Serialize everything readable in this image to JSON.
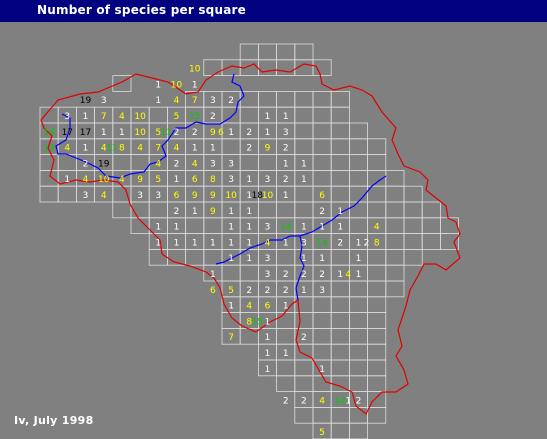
{
  "title": "Number of species per square",
  "footer": "Iv, July 1998",
  "colors": {
    "background": "#808080",
    "title_bar": "#000080",
    "grid": "#dcdcdc",
    "border": "#e00000",
    "river": "#0000ff",
    "count_1_3": "#ffffff",
    "count_4_10": "#ffff00",
    "count_11_16": "#00cc00",
    "count_17_plus": "#000000"
  },
  "cells": [
    [
      "10",
      8,
      1
    ],
    [
      "1",
      6,
      2
    ],
    [
      "10",
      7,
      2
    ],
    [
      "1",
      8,
      2
    ],
    [
      "19",
      2,
      3
    ],
    [
      "3",
      3,
      3
    ],
    [
      "1",
      6,
      3
    ],
    [
      "4",
      7,
      3
    ],
    [
      "7",
      8,
      3
    ],
    [
      "3",
      9,
      3
    ],
    [
      "2",
      10,
      3
    ],
    [
      "3",
      1,
      4
    ],
    [
      "1",
      2,
      4
    ],
    [
      "7",
      3,
      4
    ],
    [
      "4",
      4,
      4
    ],
    [
      "10",
      5,
      4
    ],
    [
      "5",
      7,
      4
    ],
    [
      "15",
      8,
      4
    ],
    [
      "2",
      9,
      4
    ],
    [
      "1",
      12,
      4
    ],
    [
      "1",
      13,
      4
    ],
    [
      "14",
      0,
      5
    ],
    [
      "17",
      1,
      5
    ],
    [
      "17",
      2,
      5
    ],
    [
      "1",
      3,
      5
    ],
    [
      "1",
      4,
      5
    ],
    [
      "10",
      5,
      5
    ],
    [
      "5",
      6,
      5
    ],
    [
      "11",
      6,
      5
    ],
    [
      "2",
      7,
      5
    ],
    [
      "2",
      8,
      5
    ],
    [
      "9",
      9,
      5
    ],
    [
      "6",
      9,
      5
    ],
    [
      "1",
      10,
      5
    ],
    [
      "2",
      11,
      5
    ],
    [
      "1",
      12,
      5
    ],
    [
      "3",
      13,
      5
    ],
    [
      "13",
      0,
      6
    ],
    [
      "4",
      1,
      6
    ],
    [
      "1",
      2,
      6
    ],
    [
      "4",
      3,
      6
    ],
    [
      "11",
      3,
      6
    ],
    [
      "8",
      4,
      6
    ],
    [
      "4",
      5,
      6
    ],
    [
      "7",
      6,
      6
    ],
    [
      "4",
      7,
      6
    ],
    [
      "1",
      8,
      6
    ],
    [
      "1",
      9,
      6
    ],
    [
      "2",
      11,
      6
    ],
    [
      "9",
      12,
      6
    ],
    [
      "2",
      13,
      6
    ],
    [
      "2",
      2,
      7
    ],
    [
      "19",
      3,
      7
    ],
    [
      "4",
      6,
      7
    ],
    [
      "2",
      7,
      7
    ],
    [
      "4",
      8,
      7
    ],
    [
      "3",
      9,
      7
    ],
    [
      "3",
      10,
      7
    ],
    [
      "1",
      13,
      7
    ],
    [
      "1",
      14,
      7
    ],
    [
      "1",
      1,
      8
    ],
    [
      "4",
      2,
      8
    ],
    [
      "10",
      3,
      8
    ],
    [
      "4",
      4,
      8
    ],
    [
      "9",
      5,
      8
    ],
    [
      "5",
      6,
      8
    ],
    [
      "1",
      7,
      8
    ],
    [
      "6",
      8,
      8
    ],
    [
      "8",
      9,
      8
    ],
    [
      "3",
      10,
      8
    ],
    [
      "1",
      11,
      8
    ],
    [
      "3",
      12,
      8
    ],
    [
      "2",
      13,
      8
    ],
    [
      "1",
      14,
      8
    ],
    [
      "3",
      2,
      9
    ],
    [
      "4",
      3,
      9
    ],
    [
      "3",
      5,
      9
    ],
    [
      "3",
      6,
      9
    ],
    [
      "6",
      7,
      9
    ],
    [
      "9",
      8,
      9
    ],
    [
      "9",
      9,
      9
    ],
    [
      "10",
      10,
      9
    ],
    [
      "1",
      11,
      9
    ],
    [
      "18",
      11,
      9
    ],
    [
      "10",
      12,
      9
    ],
    [
      "1",
      13,
      9
    ],
    [
      "6",
      15,
      9
    ],
    [
      "2",
      7,
      10
    ],
    [
      "1",
      8,
      10
    ],
    [
      "9",
      9,
      10
    ],
    [
      "1",
      10,
      10
    ],
    [
      "1",
      11,
      10
    ],
    [
      "2",
      15,
      10
    ],
    [
      "1",
      16,
      10
    ],
    [
      "1",
      6,
      11
    ],
    [
      "1",
      7,
      11
    ],
    [
      "1",
      10,
      11
    ],
    [
      "1",
      11,
      11
    ],
    [
      "3",
      12,
      11
    ],
    [
      "14",
      13,
      11
    ],
    [
      "1",
      14,
      11
    ],
    [
      "1",
      15,
      11
    ],
    [
      "1",
      16,
      11
    ],
    [
      "4",
      18,
      11
    ],
    [
      "1",
      6,
      12
    ],
    [
      "1",
      7,
      12
    ],
    [
      "1",
      8,
      12
    ],
    [
      "1",
      9,
      12
    ],
    [
      "1",
      10,
      12
    ],
    [
      "1",
      11,
      12
    ],
    [
      "4",
      12,
      12
    ],
    [
      "1",
      13,
      12
    ],
    [
      "3",
      14,
      12
    ],
    [
      "14",
      15,
      12
    ],
    [
      "2",
      16,
      12
    ],
    [
      "1",
      17,
      12
    ],
    [
      "2",
      17,
      12
    ],
    [
      "8",
      18,
      12
    ],
    [
      "1",
      10,
      13
    ],
    [
      "1",
      11,
      13
    ],
    [
      "3",
      12,
      13
    ],
    [
      "1",
      14,
      13
    ],
    [
      "1",
      15,
      13
    ],
    [
      "1",
      17,
      13
    ],
    [
      "1",
      9,
      14
    ],
    [
      "3",
      12,
      14
    ],
    [
      "2",
      13,
      14
    ],
    [
      "2",
      14,
      14
    ],
    [
      "2",
      15,
      14
    ],
    [
      "1",
      16,
      14
    ],
    [
      "4",
      16,
      14
    ],
    [
      "1",
      17,
      14
    ],
    [
      "6",
      9,
      15
    ],
    [
      "5",
      10,
      15
    ],
    [
      "2",
      11,
      15
    ],
    [
      "2",
      12,
      15
    ],
    [
      "2",
      13,
      15
    ],
    [
      "1",
      14,
      15
    ],
    [
      "3",
      15,
      15
    ],
    [
      "1",
      10,
      16
    ],
    [
      "4",
      11,
      16
    ],
    [
      "6",
      12,
      16
    ],
    [
      "1",
      13,
      16
    ],
    [
      "8",
      11,
      17
    ],
    [
      "15",
      11,
      17
    ],
    [
      "1",
      12,
      17
    ],
    [
      "7",
      10,
      18
    ],
    [
      "1",
      12,
      18
    ],
    [
      "2",
      14,
      18
    ],
    [
      "1",
      12,
      19
    ],
    [
      "1",
      13,
      19
    ],
    [
      "1",
      12,
      20
    ],
    [
      "1",
      15,
      20
    ],
    [
      "2",
      13,
      22
    ],
    [
      "2",
      14,
      22
    ],
    [
      "4",
      15,
      22
    ],
    [
      "14",
      16,
      22
    ],
    [
      "1",
      16,
      22
    ],
    [
      "2",
      17,
      22
    ],
    [
      "5",
      15,
      24
    ]
  ]
}
